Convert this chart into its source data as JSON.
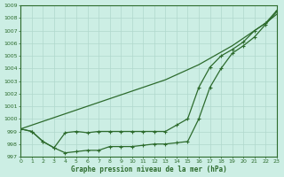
{
  "x": [
    0,
    1,
    2,
    3,
    4,
    5,
    6,
    7,
    8,
    9,
    10,
    11,
    12,
    13,
    14,
    15,
    16,
    17,
    18,
    19,
    20,
    21,
    22,
    23
  ],
  "line_straight": [
    999.2,
    999.5,
    999.8,
    1000.1,
    1000.4,
    1000.7,
    1001.0,
    1001.3,
    1001.6,
    1001.9,
    1002.2,
    1002.5,
    1002.8,
    1003.1,
    1003.5,
    1003.9,
    1004.3,
    1004.8,
    1005.3,
    1005.8,
    1006.4,
    1007.0,
    1007.6,
    1008.3
  ],
  "line_upper": [
    999.2,
    999.0,
    998.2,
    997.7,
    998.9,
    999.0,
    998.9,
    999.0,
    999.0,
    999.0,
    999.0,
    999.0,
    999.0,
    999.0,
    999.5,
    1000.0,
    1002.5,
    1004.1,
    1005.0,
    1005.5,
    1006.1,
    1007.0,
    1007.6,
    1008.6
  ],
  "line_lower": [
    999.2,
    999.0,
    998.2,
    997.7,
    997.3,
    997.4,
    997.5,
    997.5,
    997.8,
    997.8,
    997.8,
    997.9,
    998.0,
    998.0,
    998.1,
    998.2,
    1000.0,
    1002.5,
    1004.0,
    1005.2,
    1005.8,
    1006.5,
    1007.5,
    1008.5
  ],
  "bg_color": "#cceee4",
  "line_color": "#2d6b2d",
  "grid_color": "#b0d8cc",
  "xlabel": "Graphe pression niveau de la mer (hPa)",
  "ylim": [
    997,
    1009
  ],
  "xlim": [
    0,
    23
  ],
  "yticks": [
    997,
    998,
    999,
    1000,
    1001,
    1002,
    1003,
    1004,
    1005,
    1006,
    1007,
    1008,
    1009
  ],
  "xticks": [
    0,
    1,
    2,
    3,
    4,
    5,
    6,
    7,
    8,
    9,
    10,
    11,
    12,
    13,
    14,
    15,
    16,
    17,
    18,
    19,
    20,
    21,
    22,
    23
  ]
}
